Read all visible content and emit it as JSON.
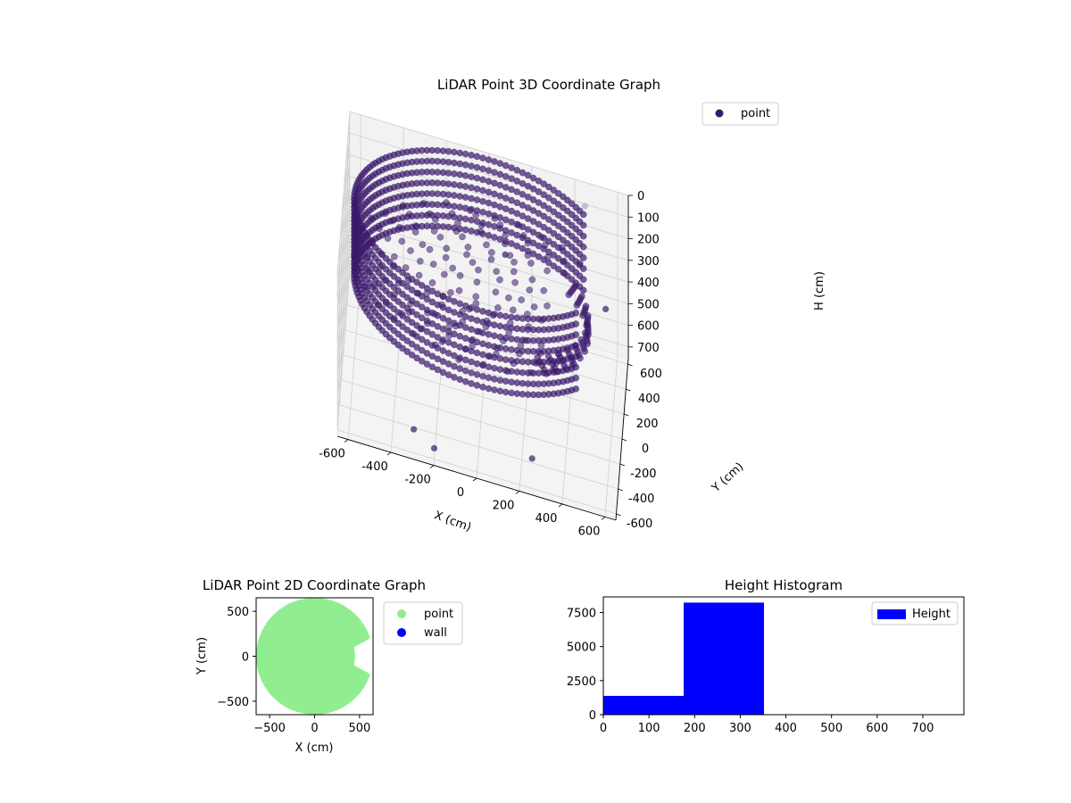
{
  "chart_data": [
    {
      "type": "scatter3d",
      "title": "LiDAR Point 3D Coordinate Graph",
      "xlabel": "X (cm)",
      "ylabel": "Y (cm)",
      "zlabel": "H (cm)",
      "xticks": [
        "-600",
        "-400",
        "-200",
        "0",
        "200",
        "400",
        "600"
      ],
      "yticks": [
        "-600",
        "-400",
        "-200",
        "0",
        "200",
        "400",
        "600"
      ],
      "zticks": [
        "0",
        "100",
        "200",
        "300",
        "400",
        "500",
        "600",
        "700"
      ],
      "xlim": [
        -650,
        650
      ],
      "ylim": [
        -650,
        650
      ],
      "zlim": [
        0,
        750
      ],
      "zaxis_inverted": true,
      "legend": {
        "label": "point",
        "placement": "top-right"
      },
      "colors": {
        "point": "#3b1a6b",
        "light": "#9ab0cc"
      },
      "shape": {
        "room_radius": 600,
        "floor_height": 250,
        "wall_heights": [
          0,
          350
        ],
        "open_sector_deg": [
          -40,
          40
        ]
      },
      "outliers": [
        {
          "x": 450,
          "y": 600,
          "z": 80
        },
        {
          "x": 560,
          "y": 300,
          "z": 350
        },
        {
          "x": 250,
          "y": -450,
          "z": 700
        },
        {
          "x": -300,
          "y": -500,
          "z": 700
        },
        {
          "x": -200,
          "y": -600,
          "z": 700
        },
        {
          "x": 100,
          "y": 100,
          "z": 120
        }
      ]
    },
    {
      "type": "scatter",
      "title": "LiDAR Point 2D Coordinate Graph",
      "xlabel": "X (cm)",
      "ylabel": "Y (cm)",
      "xticks": [
        "−500",
        "0",
        "500"
      ],
      "yticks": [
        "−500",
        "0",
        "500"
      ],
      "xlim": [
        -650,
        650
      ],
      "ylim": [
        -650,
        650
      ],
      "aspect": "equal",
      "legend": {
        "placement": "outside-right",
        "entries": [
          {
            "label": "point",
            "color": "#90ee90"
          },
          {
            "label": "wall",
            "color": "#0000ff"
          }
        ]
      },
      "region": {
        "radius": 620,
        "notch_angle_deg": [
          -20,
          20
        ],
        "notch_inner_radius": 420
      }
    },
    {
      "type": "histogram",
      "title": "Height Histogram",
      "xticks": [
        "0",
        "100",
        "200",
        "300",
        "400",
        "500",
        "600",
        "700"
      ],
      "yticks": [
        "0",
        "2500",
        "5000",
        "7500"
      ],
      "xlim": [
        0,
        790
      ],
      "ylim": [
        0,
        8650
      ],
      "bins": [
        {
          "x0": 0,
          "x1": 176,
          "count": 1380
        },
        {
          "x0": 176,
          "x1": 352,
          "count": 8230
        },
        {
          "x0": 352,
          "x1": 528,
          "count": 0
        },
        {
          "x0": 528,
          "x1": 704,
          "count": 0
        },
        {
          "x0": 704,
          "x1": 790,
          "count": 0
        }
      ],
      "color": "#0000ff",
      "legend": {
        "label": "Height",
        "placement": "top-right"
      }
    }
  ]
}
